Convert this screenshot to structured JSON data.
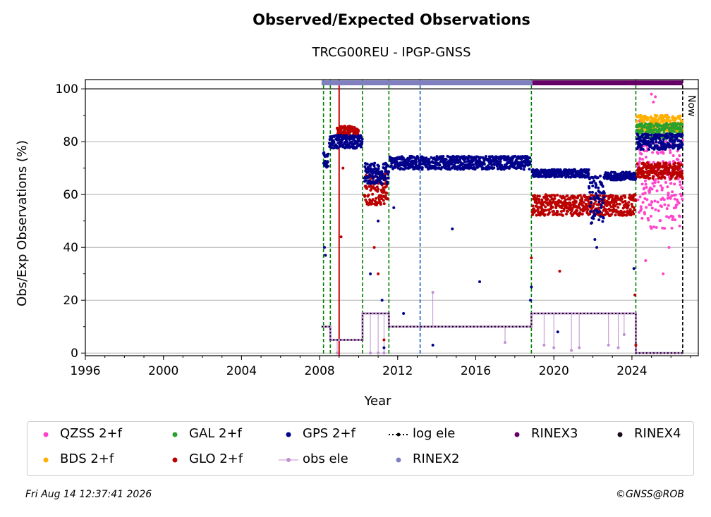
{
  "title": "Observed/Expected Observations",
  "subtitle": "TRCG00REU - IPGP-GNSS",
  "footer": {
    "timestamp": "Fri Aug 14 12:37:41 2026",
    "credit": "©GNSS@ROB"
  },
  "chart_data": {
    "type": "scatter",
    "xlabel": "Year",
    "ylabel": "Obs/Exp Observations (%)",
    "xlim": [
      1996,
      2027.4
    ],
    "ylim": [
      -1,
      103.5
    ],
    "x_ticks": [
      1996,
      2000,
      2004,
      2008,
      2012,
      2016,
      2020,
      2024
    ],
    "y_ticks": [
      0,
      20,
      40,
      60,
      80,
      100
    ],
    "grid": "horizontal",
    "now_label": "Now",
    "now_x": 2026.6,
    "legend_placement": "bottom",
    "legend": [
      {
        "name": "QZSS 2+f",
        "color": "#ff44cc",
        "kind": "dot"
      },
      {
        "name": "GAL 2+f",
        "color": "#2ca02c",
        "kind": "dot"
      },
      {
        "name": "GPS 2+f",
        "color": "#00008b",
        "kind": "dot"
      },
      {
        "name": "log ele",
        "color": "#000000",
        "kind": "dotted"
      },
      {
        "name": "RINEX3",
        "color": "#660066",
        "kind": "dot"
      },
      {
        "name": "RINEX4",
        "color": "#1a0a1a",
        "kind": "dot"
      },
      {
        "name": "BDS 2+f",
        "color": "#ffb000",
        "kind": "dot"
      },
      {
        "name": "GLO 2+f",
        "color": "#bb0000",
        "kind": "dot"
      },
      {
        "name": "obs ele",
        "color": "#c090d0",
        "kind": "line"
      },
      {
        "name": "RINEX2",
        "color": "#8080c0",
        "kind": "dot"
      }
    ],
    "rinex_bars": [
      {
        "name": "RINEX2",
        "start": 2008.1,
        "end": 2018.9,
        "y": 102,
        "color": "#8080c0"
      },
      {
        "name": "RINEX3",
        "start": 2018.9,
        "end": 2026.6,
        "y": 102,
        "color": "#660066"
      }
    ],
    "vertical_lines": [
      {
        "x": 2008.2,
        "color": "#008000",
        "style": "dashed"
      },
      {
        "x": 2008.55,
        "color": "#008000",
        "style": "dashed"
      },
      {
        "x": 2009.0,
        "color": "#cc0000",
        "style": "solid"
      },
      {
        "x": 2010.2,
        "color": "#008000",
        "style": "dashed"
      },
      {
        "x": 2011.55,
        "color": "#008000",
        "style": "dashed"
      },
      {
        "x": 2013.15,
        "color": "#1060c0",
        "style": "dashed"
      },
      {
        "x": 2018.85,
        "color": "#008000",
        "style": "dashed"
      },
      {
        "x": 2024.2,
        "color": "#008000",
        "style": "dashed"
      },
      {
        "x": 2026.6,
        "color": "#000000",
        "style": "dashed"
      }
    ],
    "series": [
      {
        "name": "GPS 2+f",
        "color": "#00008b",
        "segments": [
          {
            "start": 2008.2,
            "end": 2008.45,
            "level": 73,
            "spread": 3
          },
          {
            "start": 2008.5,
            "end": 2010.2,
            "level": 80,
            "spread": 2.5
          },
          {
            "start": 2010.3,
            "end": 2011.55,
            "level": 68,
            "spread": 4
          },
          {
            "start": 2011.6,
            "end": 2018.8,
            "level": 72,
            "spread": 2.5
          },
          {
            "start": 2018.9,
            "end": 2021.8,
            "level": 68,
            "spread": 1.5
          },
          {
            "start": 2021.8,
            "end": 2022.6,
            "level": 58,
            "spread": 9
          },
          {
            "start": 2022.6,
            "end": 2024.2,
            "level": 67,
            "spread": 1.5
          },
          {
            "start": 2024.25,
            "end": 2026.6,
            "level": 80,
            "spread": 3
          }
        ],
        "outliers": [
          [
            2008.25,
            40
          ],
          [
            2008.3,
            37
          ],
          [
            2010.6,
            30
          ],
          [
            2011.0,
            50
          ],
          [
            2011.2,
            20
          ],
          [
            2011.3,
            2
          ],
          [
            2011.8,
            55
          ],
          [
            2012.3,
            15
          ],
          [
            2013.8,
            3
          ],
          [
            2014.8,
            47
          ],
          [
            2016.2,
            27
          ],
          [
            2018.8,
            20
          ],
          [
            2018.85,
            25
          ],
          [
            2020.2,
            8
          ],
          [
            2022.1,
            43
          ],
          [
            2022.2,
            40
          ],
          [
            2024.1,
            32
          ]
        ]
      },
      {
        "name": "GLO 2+f",
        "color": "#bb0000",
        "segments": [
          {
            "start": 2008.9,
            "end": 2010.0,
            "level": 84,
            "spread": 2
          },
          {
            "start": 2010.3,
            "end": 2011.5,
            "level": 62,
            "spread": 6
          },
          {
            "start": 2018.9,
            "end": 2024.2,
            "level": 56,
            "spread": 4
          },
          {
            "start": 2024.25,
            "end": 2026.6,
            "level": 69,
            "spread": 3
          }
        ],
        "outliers": [
          [
            2009.1,
            44
          ],
          [
            2009.2,
            70
          ],
          [
            2010.8,
            40
          ],
          [
            2011.0,
            30
          ],
          [
            2011.3,
            5
          ],
          [
            2018.85,
            36
          ],
          [
            2020.3,
            31
          ],
          [
            2024.15,
            22
          ],
          [
            2024.2,
            3
          ]
        ]
      },
      {
        "name": "QZSS 2+f",
        "color": "#ff44cc",
        "segments": [
          {
            "start": 2024.3,
            "end": 2026.6,
            "level": 65,
            "spread": 18
          }
        ],
        "outliers": [
          [
            2025.0,
            98
          ],
          [
            2025.2,
            97
          ],
          [
            2025.1,
            95
          ],
          [
            2024.4,
            88
          ],
          [
            2025.8,
            90
          ],
          [
            2025.9,
            40
          ],
          [
            2025.6,
            30
          ],
          [
            2024.7,
            35
          ]
        ]
      },
      {
        "name": "GAL 2+f",
        "color": "#2ca02c",
        "segments": [
          {
            "start": 2024.25,
            "end": 2026.6,
            "level": 84,
            "spread": 3
          }
        ],
        "outliers": []
      },
      {
        "name": "BDS 2+f",
        "color": "#ffb000",
        "segments": [
          {
            "start": 2024.25,
            "end": 2026.6,
            "level": 87,
            "spread": 3
          }
        ],
        "outliers": []
      }
    ],
    "log_ele": [
      [
        2008.1,
        10
      ],
      [
        2008.55,
        10
      ],
      [
        2008.55,
        5
      ],
      [
        2010.2,
        5
      ],
      [
        2010.2,
        15
      ],
      [
        2011.55,
        15
      ],
      [
        2011.55,
        10
      ],
      [
        2018.85,
        10
      ],
      [
        2018.85,
        15
      ],
      [
        2024.2,
        15
      ],
      [
        2024.2,
        0
      ],
      [
        2026.6,
        0
      ]
    ],
    "obs_ele": [
      [
        2008.1,
        10
      ],
      [
        2008.55,
        10
      ],
      [
        2008.55,
        5
      ],
      [
        2010.2,
        5
      ],
      [
        2010.2,
        15
      ],
      [
        2011.55,
        15
      ],
      [
        2011.55,
        10
      ],
      [
        2018.85,
        10
      ],
      [
        2018.85,
        15
      ],
      [
        2024.2,
        15
      ],
      [
        2024.2,
        0
      ],
      [
        2026.6,
        0
      ]
    ],
    "obs_ele_drops": [
      [
        2008.9,
        0
      ],
      [
        2010.6,
        0
      ],
      [
        2011.0,
        0
      ],
      [
        2011.3,
        0
      ],
      [
        2013.8,
        23
      ],
      [
        2017.5,
        4
      ],
      [
        2019.5,
        3
      ],
      [
        2020.0,
        2
      ],
      [
        2020.9,
        1
      ],
      [
        2021.3,
        2
      ],
      [
        2022.8,
        3
      ],
      [
        2023.3,
        2
      ],
      [
        2023.6,
        7
      ]
    ]
  }
}
